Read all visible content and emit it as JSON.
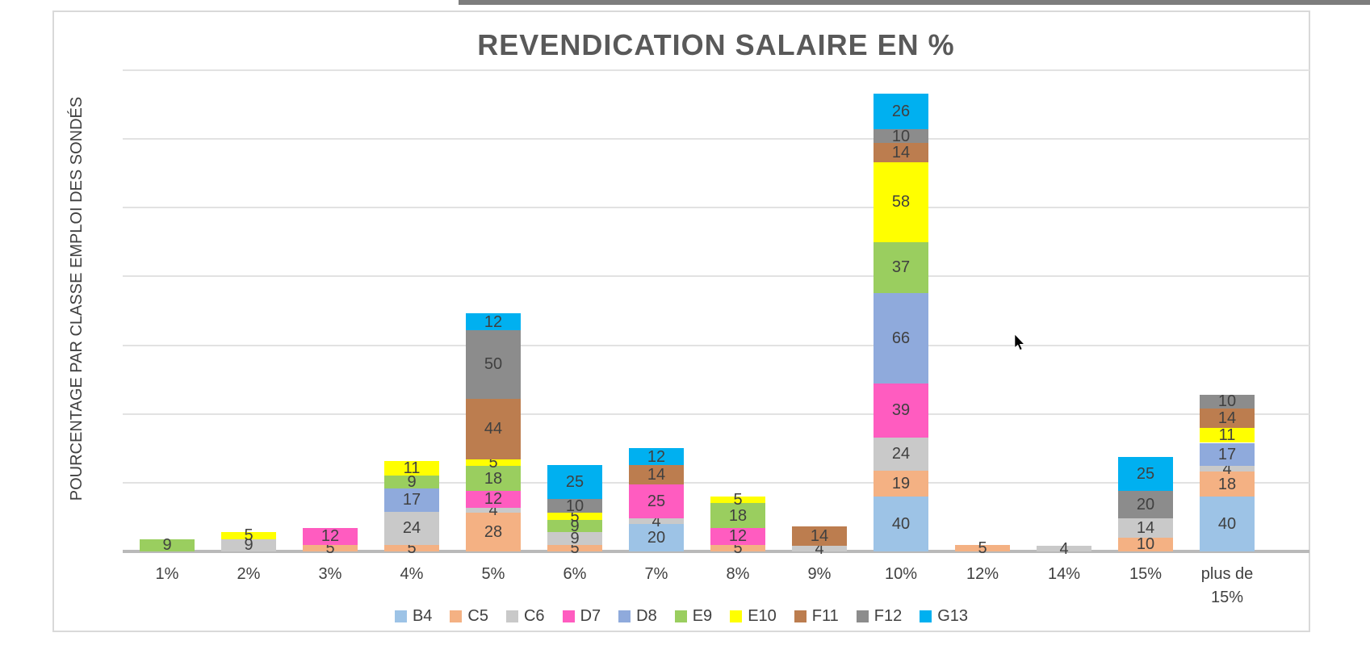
{
  "window": {
    "top_edge_strip_color": "#7d7d7d"
  },
  "chart_data": {
    "type": "bar",
    "stacked": true,
    "title": "REVENDICATION SALAIRE EN %",
    "xlabel": "",
    "ylabel": "POURCENTAGE PAR CLASSE EMPLOI DES SONDÉS",
    "ylim": [
      0,
      350
    ],
    "grid_step": 50,
    "grid": true,
    "y_tick_labels_shown": false,
    "value_labels_shown": true,
    "legend_position": "bottom",
    "categories": [
      "1%",
      "2%",
      "3%",
      "4%",
      "5%",
      "6%",
      "7%",
      "8%",
      "9%",
      "10%",
      "12%",
      "14%",
      "15%",
      "plus de 15%"
    ],
    "series": [
      {
        "name": "B4",
        "color": "#9dc3e6",
        "values": [
          0,
          0,
          0,
          0,
          0,
          0,
          20,
          0,
          0,
          40,
          0,
          0,
          0,
          40
        ]
      },
      {
        "name": "C5",
        "color": "#f4b183",
        "values": [
          0,
          0,
          5,
          5,
          28,
          5,
          0,
          5,
          0,
          19,
          5,
          0,
          10,
          18
        ]
      },
      {
        "name": "C6",
        "color": "#c9c9c9",
        "values": [
          0,
          9,
          0,
          24,
          4,
          9,
          4,
          0,
          4,
          24,
          0,
          4,
          14,
          4
        ]
      },
      {
        "name": "D7",
        "color": "#ff5cc0",
        "values": [
          0,
          0,
          12,
          0,
          12,
          0,
          25,
          12,
          0,
          39,
          0,
          0,
          0,
          0
        ]
      },
      {
        "name": "D8",
        "color": "#8faadc",
        "values": [
          0,
          0,
          0,
          17,
          0,
          0,
          0,
          0,
          0,
          66,
          0,
          0,
          0,
          17
        ]
      },
      {
        "name": "E9",
        "color": "#9ace5f",
        "values": [
          9,
          0,
          0,
          9,
          18,
          9,
          0,
          18,
          0,
          37,
          0,
          0,
          0,
          0
        ]
      },
      {
        "name": "E10",
        "color": "#ffff00",
        "values": [
          0,
          5,
          0,
          11,
          5,
          5,
          0,
          5,
          0,
          58,
          0,
          0,
          0,
          11
        ]
      },
      {
        "name": "F11",
        "color": "#bc7d4f",
        "values": [
          0,
          0,
          0,
          0,
          44,
          0,
          14,
          0,
          14,
          14,
          0,
          0,
          0,
          14
        ]
      },
      {
        "name": "F12",
        "color": "#8c8c8c",
        "values": [
          0,
          0,
          0,
          0,
          50,
          10,
          0,
          0,
          0,
          10,
          0,
          0,
          20,
          10
        ]
      },
      {
        "name": "G13",
        "color": "#00b0f0",
        "values": [
          0,
          0,
          0,
          0,
          12,
          25,
          12,
          0,
          0,
          26,
          0,
          0,
          25,
          0
        ]
      }
    ]
  }
}
